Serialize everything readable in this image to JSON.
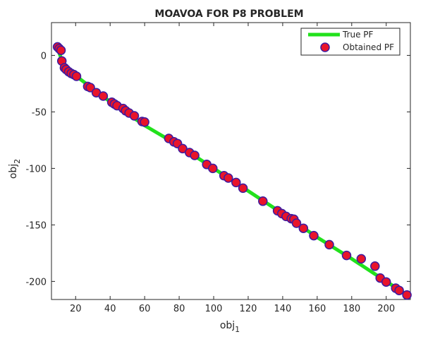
{
  "chart_data": {
    "type": "scatter",
    "title": "MOAVOA FOR P8 PROBLEM",
    "xlabel": "obj",
    "xlabel_sub": "1",
    "ylabel": "obj",
    "ylabel_sub": "2",
    "xlim": [
      6,
      214
    ],
    "ylim": [
      -216,
      29
    ],
    "xticks": [
      20,
      40,
      60,
      80,
      100,
      120,
      140,
      160,
      180,
      200
    ],
    "yticks": [
      0,
      -50,
      -100,
      -150,
      -200
    ],
    "grid": false,
    "legend_position": "top-right",
    "series": [
      {
        "name": "True PF",
        "kind": "line",
        "color": "#22e11c",
        "x": [
          9.5,
          13,
          20,
          40,
          60,
          80,
          100,
          120,
          140,
          160,
          180,
          200,
          211
        ],
        "y": [
          6,
          -8,
          -18,
          -41,
          -62,
          -80,
          -100,
          -120,
          -140,
          -161,
          -180,
          -200,
          -211
        ]
      },
      {
        "name": "Obtained PF",
        "kind": "scatter",
        "color": "#e8142a",
        "edge_color": "#3d1aa0",
        "x": [
          9.5,
          10.5,
          11.5,
          12,
          13.5,
          14.5,
          16,
          17.5,
          19,
          20.5,
          27,
          28.5,
          32,
          36,
          41,
          42.5,
          44,
          47.5,
          49,
          51,
          54,
          58.5,
          60,
          74,
          77,
          79,
          82,
          86,
          89,
          96,
          99.5,
          106,
          108.5,
          113,
          117,
          128.5,
          137,
          139.5,
          142,
          145,
          146.5,
          148,
          152,
          158,
          167,
          177,
          185.5,
          193.5,
          196.5,
          200,
          205.5,
          207.5,
          212
        ],
        "y": [
          7.5,
          6,
          4.5,
          -5,
          -11,
          -12.5,
          -14.5,
          -16,
          -17,
          -18.5,
          -27.5,
          -28.5,
          -33,
          -36,
          -41.5,
          -43,
          -44.5,
          -47,
          -49,
          -51,
          -53.5,
          -58.5,
          -59,
          -73.5,
          -76.5,
          -78,
          -82.5,
          -86,
          -88.5,
          -96.5,
          -100,
          -106.5,
          -108.5,
          -112.5,
          -117.5,
          -129,
          -137.5,
          -140,
          -142.5,
          -144.5,
          -145,
          -148.5,
          -153,
          -159.5,
          -167.5,
          -177,
          -180,
          -186.5,
          -197,
          -200.5,
          -206,
          -208,
          -212
        ]
      }
    ]
  }
}
